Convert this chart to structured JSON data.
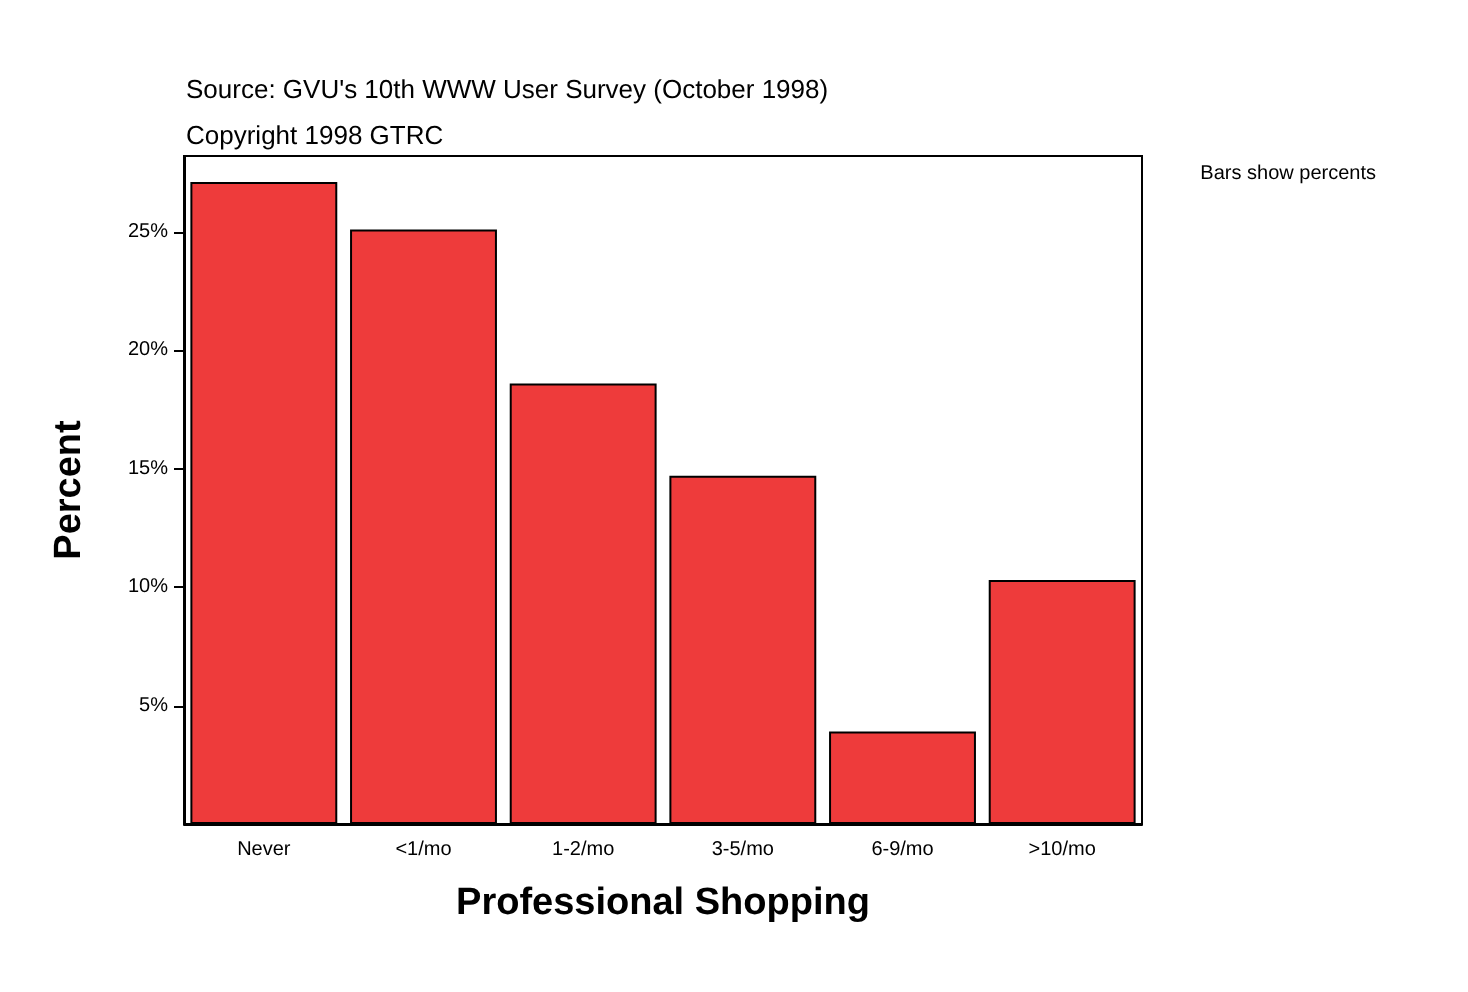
{
  "chart_data": {
    "type": "bar",
    "title": "Source: GVU's 10th WWW User Survey (October 1998)",
    "subtitle": "Copyright 1998 GTRC",
    "xlabel": "Professional Shopping",
    "ylabel": "Percent",
    "annotations": [
      "Bars show percents"
    ],
    "categories": [
      "Never",
      "<1/mo",
      "1-2/mo",
      "3-5/mo",
      "6-9/mo",
      ">10/mo"
    ],
    "values": [
      27.1,
      25.1,
      18.6,
      14.7,
      3.9,
      10.3
    ],
    "color": "#ee3b3b",
    "ylim": [
      0,
      28.2
    ],
    "yticks": [
      {
        "value": 5,
        "label": "5%"
      },
      {
        "value": 10,
        "label": "10%"
      },
      {
        "value": 15,
        "label": "15%"
      },
      {
        "value": 20,
        "label": "20%"
      },
      {
        "value": 25,
        "label": "25%"
      }
    ],
    "grid": false
  }
}
